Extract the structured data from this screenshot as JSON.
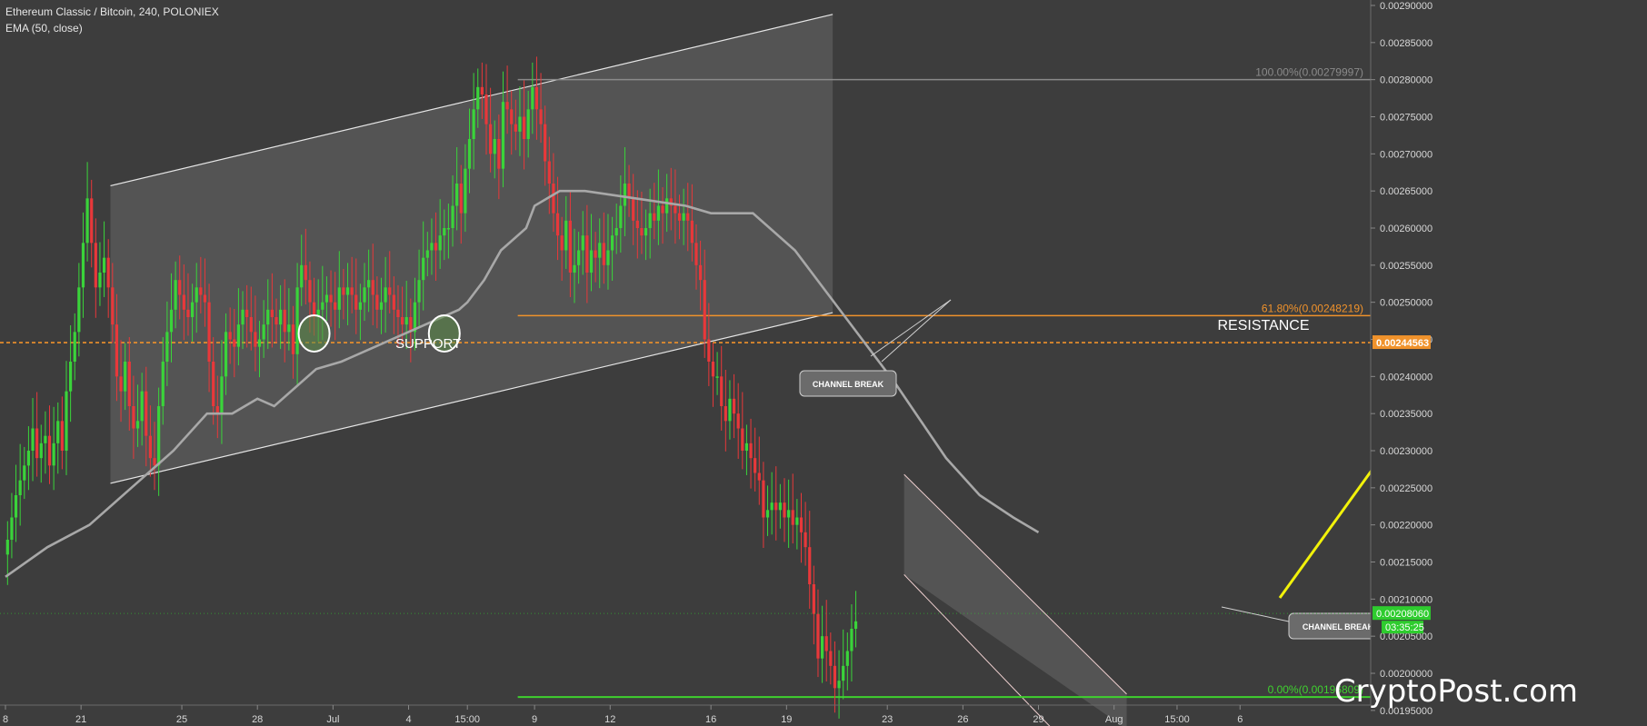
{
  "header": {
    "symbol": "Ethereum Classic / Bitcoin, 240, POLONIEX",
    "indicator": "EMA (50, close)"
  },
  "watermark": "CryptoPost.com",
  "colors": {
    "background": "#3d3d3d",
    "up_candle": "#3ad43a",
    "down_candle": "#e8383a",
    "ema_line": "#a8a8a8",
    "fib_618": "#f0922b",
    "fib_0": "#3fd12f",
    "arrow": "#f2f20a",
    "price_tag": "#2ecc2e"
  },
  "chart_data": {
    "type": "candlestick",
    "title": "Ethereum Classic / Bitcoin, 240, POLONIEX",
    "indicator": "EMA (50, close)",
    "ylim": [
      0.00194,
      0.0029
    ],
    "y_ticks": [
      "0.00195000",
      "0.00200000",
      "0.00205000",
      "0.00210000",
      "0.00215000",
      "0.00220000",
      "0.00225000",
      "0.00230000",
      "0.00235000",
      "0.00240000",
      "0.00245000",
      "0.00250000",
      "0.00255000",
      "0.00260000",
      "0.00265000",
      "0.00270000",
      "0.00275000",
      "0.00280000",
      "0.00285000",
      "0.00290000"
    ],
    "x_ticks": [
      {
        "label": "8",
        "bar": 0
      },
      {
        "label": "21",
        "bar": 18
      },
      {
        "label": "25",
        "bar": 42
      },
      {
        "label": "28",
        "bar": 60
      },
      {
        "label": "Jul",
        "bar": 78
      },
      {
        "label": "4",
        "bar": 96
      },
      {
        "label": "15:00",
        "bar": 110
      },
      {
        "label": "9",
        "bar": 126
      },
      {
        "label": "12",
        "bar": 144
      },
      {
        "label": "16",
        "bar": 168
      },
      {
        "label": "19",
        "bar": 186
      },
      {
        "label": "23",
        "bar": 210
      },
      {
        "label": "26",
        "bar": 228
      },
      {
        "label": "29",
        "bar": 246
      },
      {
        "label": "Aug",
        "bar": 264
      },
      {
        "label": "15:00",
        "bar": 279
      },
      {
        "label": "6",
        "bar": 294
      }
    ],
    "closes": [
      0.00218,
      0.00221,
      0.00224,
      0.00226,
      0.00228,
      0.0023,
      0.00233,
      0.00229,
      0.00231,
      0.00232,
      0.00228,
      0.00231,
      0.00234,
      0.0023,
      0.00238,
      0.00242,
      0.00246,
      0.00252,
      0.00258,
      0.00264,
      0.00258,
      0.00252,
      0.00254,
      0.00256,
      0.00252,
      0.00247,
      0.0024,
      0.00238,
      0.00242,
      0.00236,
      0.00233,
      0.00234,
      0.00238,
      0.00232,
      0.00229,
      0.00228,
      0.00236,
      0.00242,
      0.00246,
      0.00249,
      0.00253,
      0.00251,
      0.00249,
      0.00248,
      0.0025,
      0.00252,
      0.00251,
      0.0025,
      0.00242,
      0.00236,
      0.00235,
      0.0024,
      0.00246,
      0.00245,
      0.00244,
      0.00247,
      0.00249,
      0.00248,
      0.00246,
      0.00244,
      0.00245,
      0.00247,
      0.00249,
      0.00248,
      0.00247,
      0.00249,
      0.00246,
      0.00247,
      0.00243,
      0.00252,
      0.00255,
      0.00253,
      0.0025,
      0.00248,
      0.00249,
      0.0025,
      0.00251,
      0.0025,
      0.00249,
      0.00252,
      0.00251,
      0.00252,
      0.00251,
      0.00249,
      0.0025,
      0.00252,
      0.00253,
      0.00251,
      0.00249,
      0.0025,
      0.00252,
      0.00251,
      0.00249,
      0.00248,
      0.00247,
      0.00248,
      0.00246,
      0.0025,
      0.00253,
      0.00256,
      0.00257,
      0.00258,
      0.00257,
      0.00259,
      0.0026,
      0.0026,
      0.00263,
      0.00266,
      0.00262,
      0.00268,
      0.00272,
      0.00276,
      0.00279,
      0.00278,
      0.00274,
      0.0027,
      0.00272,
      0.00268,
      0.00277,
      0.00276,
      0.00274,
      0.00273,
      0.00275,
      0.00272,
      0.00276,
      0.00279,
      0.00276,
      0.00274,
      0.00269,
      0.00266,
      0.00262,
      0.00259,
      0.00257,
      0.00261,
      0.00254,
      0.00255,
      0.00257,
      0.00259,
      0.00254,
      0.00257,
      0.00256,
      0.00258,
      0.00255,
      0.00257,
      0.00259,
      0.0026,
      0.00263,
      0.00266,
      0.00264,
      0.00261,
      0.0026,
      0.00259,
      0.0026,
      0.00262,
      0.00261,
      0.00263,
      0.00262,
      0.00264,
      0.00263,
      0.00262,
      0.00261,
      0.00262,
      0.00261,
      0.00258,
      0.00255,
      0.00253,
      0.00245,
      0.00242,
      0.0024,
      0.0024,
      0.00236,
      0.00234,
      0.00237,
      0.00235,
      0.00233,
      0.0023,
      0.00231,
      0.00229,
      0.00227,
      0.00226,
      0.00221,
      0.00222,
      0.00223,
      0.00222,
      0.00223,
      0.00221,
      0.00222,
      0.0022,
      0.00221,
      0.00219,
      0.00217,
      0.00212,
      0.00208,
      0.00202,
      0.00205,
      0.00203,
      0.00201,
      0.00198,
      0.00199,
      0.00201,
      0.00203,
      0.00206,
      0.00207
    ],
    "last_price": "0.00208060",
    "countdown": "03:35:25",
    "ema": [
      0.00213,
      0.00217,
      0.0022,
      0.00225,
      0.0023,
      0.00235,
      0.00235,
      0.00237,
      0.00236,
      0.00241,
      0.00242,
      0.00244,
      0.00246,
      0.00247,
      0.00248,
      0.00249,
      0.0025,
      0.00253,
      0.00257,
      0.0026,
      0.00263,
      0.00265,
      0.00265,
      0.00264,
      0.00263,
      0.00262,
      0.00262,
      0.00262,
      0.00262,
      0.0026,
      0.00257,
      0.00251,
      0.00245,
      0.00239,
      0.00234,
      0.00229,
      0.00224,
      0.00221,
      0.00219
    ],
    "ema_bars": [
      0,
      10,
      20,
      30,
      40,
      48,
      54,
      60,
      64,
      74,
      80,
      88,
      96,
      100,
      104,
      108,
      110,
      114,
      118,
      124,
      126,
      132,
      138,
      150,
      162,
      168,
      172,
      176,
      178,
      182,
      188,
      196,
      204,
      212,
      218,
      224,
      232,
      240,
      246
    ],
    "fibonacci": [
      {
        "label": "100.00%(0.00279997)",
        "value": 0.0028
      },
      {
        "label": "61.80%(0.00248219)",
        "value": 0.002482
      },
      {
        "label": "0.00%(0.00196809)",
        "value": 0.001968
      }
    ],
    "resistance": {
      "label": "RESISTANCE",
      "value": "0.00244563"
    },
    "support_label": "SUPPORT",
    "callouts": [
      {
        "text": "CHANNEL BREAK"
      },
      {
        "text": "CHANNEL BREAK"
      }
    ]
  }
}
